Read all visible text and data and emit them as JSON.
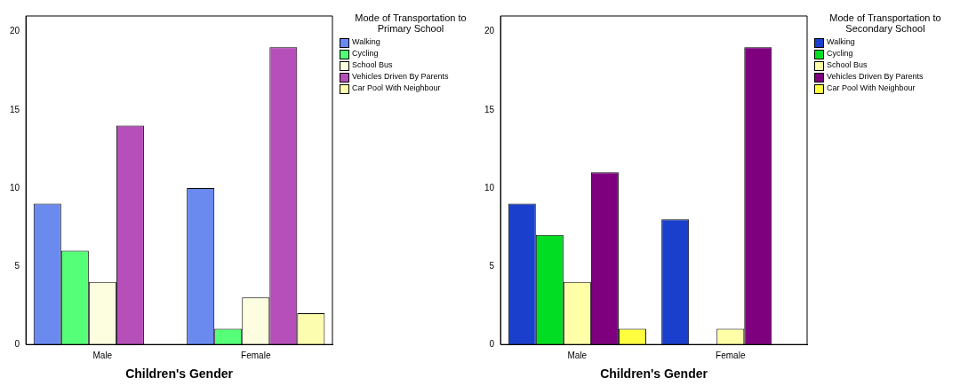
{
  "chart_data": [
    {
      "type": "bar",
      "xlabel": "Children's Gender",
      "legend_title": "Mode of Transportation to Primary School",
      "legend": "right",
      "categories": [
        "Male",
        "Female"
      ],
      "ylim": [
        0,
        21
      ],
      "yticks": [
        0,
        5,
        10,
        15,
        20
      ],
      "grid": false,
      "series": [
        {
          "name": "Walking",
          "color": "#6a8af0",
          "values": [
            9,
            10
          ]
        },
        {
          "name": "Cycling",
          "color": "#55ff77",
          "values": [
            6,
            1
          ]
        },
        {
          "name": "School Bus",
          "color": "#fdfde0",
          "values": [
            4,
            3
          ]
        },
        {
          "name": "Vehicles Driven By Parents",
          "color": "#b64fb9",
          "values": [
            14,
            19
          ]
        },
        {
          "name": "Car Pool With Neighbour",
          "color": "#fdfdb0",
          "values": [
            0,
            2
          ]
        }
      ]
    },
    {
      "type": "bar",
      "xlabel": "Children's Gender",
      "legend_title": "Mode of Transportation to Secondary School",
      "legend": "right",
      "categories": [
        "Male",
        "Female"
      ],
      "ylim": [
        0,
        21
      ],
      "yticks": [
        0,
        5,
        10,
        15,
        20
      ],
      "grid": false,
      "series": [
        {
          "name": "Walking",
          "color": "#1a3fcc",
          "values": [
            9,
            8
          ]
        },
        {
          "name": "Cycling",
          "color": "#00dd22",
          "values": [
            7,
            0
          ]
        },
        {
          "name": "School Bus",
          "color": "#ffffa8",
          "values": [
            4,
            1
          ]
        },
        {
          "name": "Vehicles Driven By Parents",
          "color": "#7f007f",
          "values": [
            11,
            19
          ]
        },
        {
          "name": "Car Pool With Neighbour",
          "color": "#ffff40",
          "values": [
            1,
            0
          ]
        }
      ]
    }
  ]
}
